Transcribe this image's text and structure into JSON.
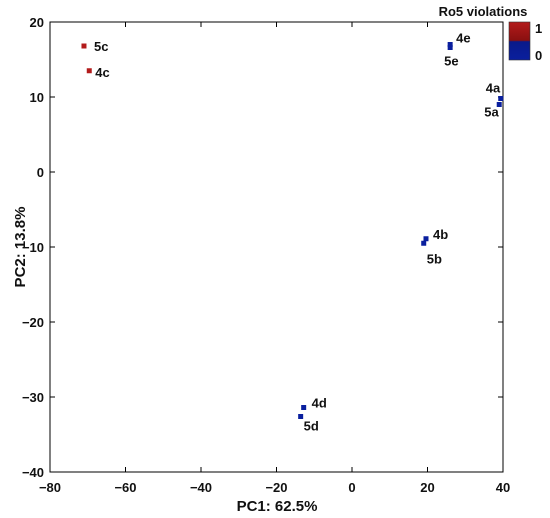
{
  "chart_data": {
    "type": "scatter",
    "xlabel": "PC1: 62.5%",
    "ylabel": "PC2: 13.8%",
    "xlim": [
      -80,
      40
    ],
    "ylim": [
      -40,
      20
    ],
    "xticks": [
      -80,
      -60,
      -40,
      -20,
      0,
      20,
      40
    ],
    "yticks": [
      -40,
      -30,
      -20,
      -10,
      0,
      10,
      20
    ],
    "grid": false,
    "colorbar": {
      "title": "Ro5 violations",
      "placement": "top-right",
      "ticks": [
        {
          "label": "1",
          "value": 1,
          "color": "#b31b1b"
        },
        {
          "label": "0",
          "value": 0,
          "color": "#0a1f9e"
        }
      ]
    },
    "points": [
      {
        "label": "5c",
        "x": -71.0,
        "y": 16.8,
        "violations": 1
      },
      {
        "label": "4c",
        "x": -69.6,
        "y": 13.5,
        "violations": 1
      },
      {
        "label": "4e",
        "x": 26.0,
        "y": 17.0,
        "violations": 0
      },
      {
        "label": "5e",
        "x": 26.0,
        "y": 16.6,
        "violations": 0
      },
      {
        "label": "4a",
        "x": 39.4,
        "y": 9.8,
        "violations": 0
      },
      {
        "label": "5a",
        "x": 39.0,
        "y": 9.0,
        "violations": 0
      },
      {
        "label": "4b",
        "x": 19.6,
        "y": -8.9,
        "violations": 0
      },
      {
        "label": "5b",
        "x": 19.0,
        "y": -9.5,
        "violations": 0
      },
      {
        "label": "4d",
        "x": -12.8,
        "y": -31.4,
        "violations": 0
      },
      {
        "label": "5d",
        "x": -13.6,
        "y": -32.6,
        "violations": 0
      }
    ]
  }
}
